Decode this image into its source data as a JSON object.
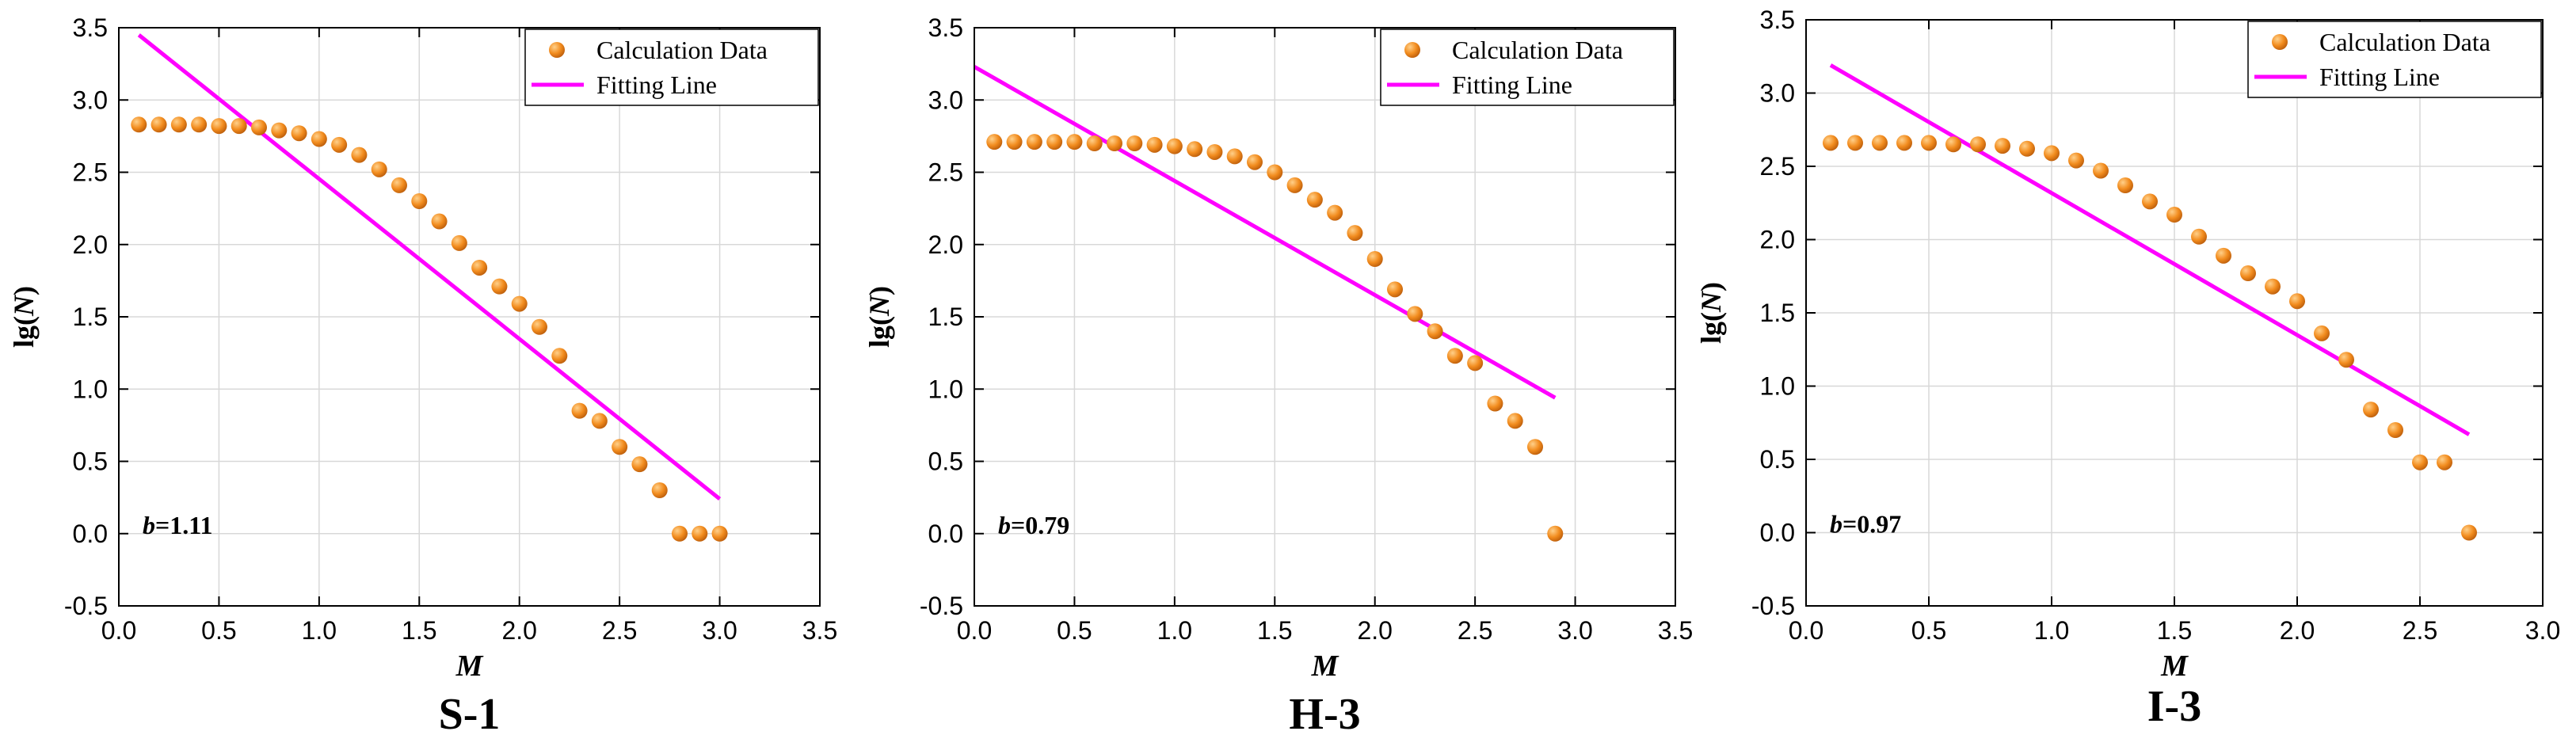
{
  "colors": {
    "fit": "#ff00ff",
    "point_light": "#ffd08a",
    "point": "#f28c1e",
    "point_dark": "#b85a0a",
    "grid": "#d8d8d8"
  },
  "chart_data": [
    {
      "type": "scatter",
      "panel_title": "S-1",
      "xlabel": "M",
      "ylabel_prefix": "lg(",
      "ylabel_var": "N",
      "ylabel_suffix": ")",
      "xlim": [
        0,
        3.5
      ],
      "ylim": [
        -0.5,
        3.5
      ],
      "xticks": [
        "0.0",
        "0.5",
        "1.0",
        "1.5",
        "2.0",
        "2.5",
        "3.0",
        "3.5"
      ],
      "yticks": [
        "-0.5",
        "0.0",
        "0.5",
        "1.0",
        "1.5",
        "2.0",
        "2.5",
        "3.0",
        "3.5"
      ],
      "grid": true,
      "legend": {
        "position": "top-right",
        "entries": [
          "Calculation Data",
          "Fitting Line"
        ]
      },
      "annotation": {
        "var": "b",
        "text": "=1.11"
      },
      "series": [
        {
          "name": "Calculation Data",
          "x": [
            0.1,
            0.2,
            0.3,
            0.4,
            0.5,
            0.6,
            0.7,
            0.8,
            0.9,
            1.0,
            1.1,
            1.2,
            1.3,
            1.4,
            1.5,
            1.6,
            1.7,
            1.8,
            1.9,
            2.0,
            2.1,
            2.2,
            2.3,
            2.4,
            2.5,
            2.6,
            2.7,
            2.8,
            2.9,
            3.0
          ],
          "y": [
            2.83,
            2.83,
            2.83,
            2.83,
            2.82,
            2.82,
            2.81,
            2.79,
            2.77,
            2.73,
            2.69,
            2.62,
            2.52,
            2.41,
            2.3,
            2.16,
            2.01,
            1.84,
            1.71,
            1.59,
            1.43,
            1.23,
            0.85,
            0.78,
            0.6,
            0.48,
            0.3,
            0.0,
            0.0,
            0.0
          ]
        },
        {
          "name": "Fitting Line",
          "x": [
            0.1,
            3.0
          ],
          "y": [
            3.45,
            0.24
          ]
        }
      ]
    },
    {
      "type": "scatter",
      "panel_title": "H-3",
      "xlabel": "M",
      "ylabel_prefix": "lg(",
      "ylabel_var": "N",
      "ylabel_suffix": ")",
      "xlim": [
        0,
        3.5
      ],
      "ylim": [
        -0.5,
        3.5
      ],
      "xticks": [
        "0.0",
        "0.5",
        "1.0",
        "1.5",
        "2.0",
        "2.5",
        "3.0",
        "3.5"
      ],
      "yticks": [
        "-0.5",
        "0.0",
        "0.5",
        "1.0",
        "1.5",
        "2.0",
        "2.5",
        "3.0",
        "3.5"
      ],
      "grid": true,
      "legend": {
        "position": "top-right",
        "entries": [
          "Calculation Data",
          "Fitting Line"
        ]
      },
      "annotation": {
        "var": "b",
        "text": "=0.79"
      },
      "series": [
        {
          "name": "Calculation Data",
          "x": [
            0.1,
            0.2,
            0.3,
            0.4,
            0.5,
            0.6,
            0.7,
            0.8,
            0.9,
            1.0,
            1.1,
            1.2,
            1.3,
            1.4,
            1.5,
            1.6,
            1.7,
            1.8,
            1.9,
            2.0,
            2.1,
            2.2,
            2.3,
            2.4,
            2.5,
            2.6,
            2.7,
            2.8,
            2.9
          ],
          "y": [
            2.71,
            2.71,
            2.71,
            2.71,
            2.71,
            2.7,
            2.7,
            2.7,
            2.69,
            2.68,
            2.66,
            2.64,
            2.61,
            2.57,
            2.5,
            2.41,
            2.31,
            2.22,
            2.08,
            1.9,
            1.69,
            1.52,
            1.4,
            1.23,
            1.18,
            0.9,
            0.78,
            0.6,
            0.0
          ]
        },
        {
          "name": "Fitting Line",
          "x": [
            0.0,
            2.9
          ],
          "y": [
            3.23,
            0.94
          ]
        }
      ]
    },
    {
      "type": "scatter",
      "panel_title": "I-3",
      "xlabel": "M",
      "ylabel_prefix": "lg(",
      "ylabel_var": "N",
      "ylabel_suffix": ")",
      "xlim": [
        0,
        3.0
      ],
      "ylim": [
        -0.5,
        3.5
      ],
      "xticks": [
        "0.0",
        "0.5",
        "1.0",
        "1.5",
        "2.0",
        "2.5",
        "3.0"
      ],
      "yticks": [
        "-0.5",
        "0.0",
        "0.5",
        "1.0",
        "1.5",
        "2.0",
        "2.5",
        "3.0",
        "3.5"
      ],
      "grid": true,
      "legend": {
        "position": "top-right",
        "entries": [
          "Calculation Data",
          "Fitting Line"
        ]
      },
      "annotation": {
        "var": "b",
        "text": "=0.97"
      },
      "series": [
        {
          "name": "Calculation Data",
          "x": [
            0.1,
            0.2,
            0.3,
            0.4,
            0.5,
            0.6,
            0.7,
            0.8,
            0.9,
            1.0,
            1.1,
            1.2,
            1.3,
            1.4,
            1.5,
            1.6,
            1.7,
            1.8,
            1.9,
            2.0,
            2.1,
            2.2,
            2.3,
            2.4,
            2.5,
            2.6,
            2.7
          ],
          "y": [
            2.66,
            2.66,
            2.66,
            2.66,
            2.66,
            2.65,
            2.65,
            2.64,
            2.62,
            2.59,
            2.54,
            2.47,
            2.37,
            2.26,
            2.17,
            2.02,
            1.89,
            1.77,
            1.68,
            1.58,
            1.36,
            1.18,
            0.84,
            0.7,
            0.48,
            0.48,
            0.0
          ]
        },
        {
          "name": "Fitting Line",
          "x": [
            0.1,
            2.7
          ],
          "y": [
            3.19,
            0.67
          ]
        }
      ]
    }
  ]
}
